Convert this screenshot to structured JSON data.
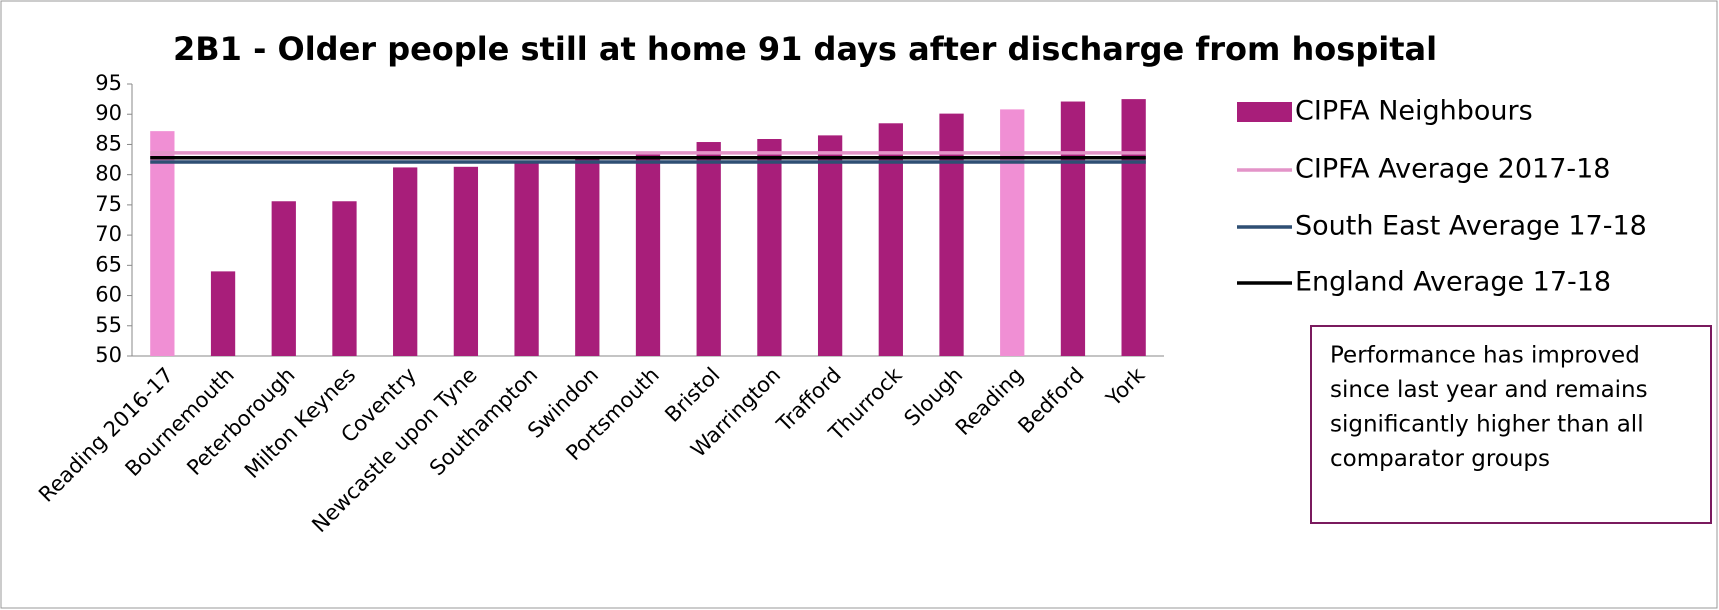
{
  "chart_data": {
    "type": "bar",
    "title": "2B1 - Older people still at home 91 days after discharge from hospital",
    "categories": [
      "Reading 2016-17",
      "Bournemouth",
      "Peterborough",
      "Milton Keynes",
      "Coventry",
      "Newcastle upon Tyne",
      "Southampton",
      "Swindon",
      "Portsmouth",
      "Bristol",
      "Warrington",
      "Trafford",
      "Thurrock",
      "Slough",
      "Reading",
      "Bedford",
      "York"
    ],
    "series": [
      {
        "name": "CIPFA Neighbours",
        "color": "#a81e7a",
        "values": [
          87.2,
          64.0,
          75.6,
          75.6,
          81.2,
          81.3,
          82.1,
          82.8,
          83.6,
          85.4,
          85.9,
          86.5,
          88.5,
          90.1,
          90.8,
          92.1,
          92.5
        ],
        "colors": [
          "#f08fd4",
          "#a81e7a",
          "#a81e7a",
          "#a81e7a",
          "#a81e7a",
          "#a81e7a",
          "#a81e7a",
          "#a81e7a",
          "#a81e7a",
          "#a81e7a",
          "#a81e7a",
          "#a81e7a",
          "#a81e7a",
          "#a81e7a",
          "#f08fd4",
          "#a81e7a",
          "#a81e7a"
        ]
      },
      {
        "name": "CIPFA Average 2017-18",
        "color": "#e394c8",
        "type": "hline",
        "value": 83.6
      },
      {
        "name": "South East Average 17-18",
        "color": "#2e4f73",
        "type": "hline",
        "value": 82.1
      },
      {
        "name": "England Average 17-18",
        "color": "#000000",
        "type": "hline",
        "value": 82.8
      }
    ],
    "ylim": [
      50,
      95
    ],
    "yticks": [
      50,
      55,
      60,
      65,
      70,
      75,
      80,
      85,
      90,
      95
    ],
    "annotation": [
      "Performance has improved",
      "since last year and remains",
      "significantly higher than all",
      "comparator groups"
    ]
  }
}
